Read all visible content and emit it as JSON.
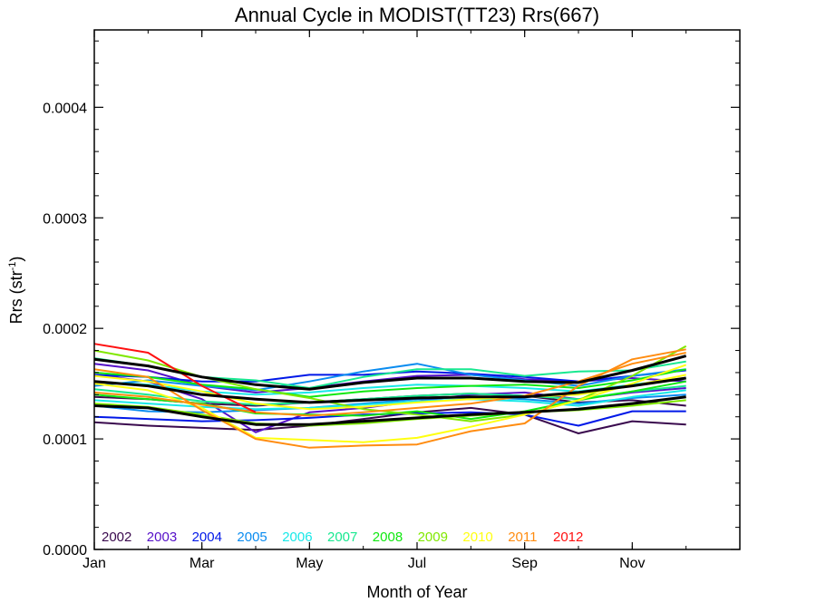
{
  "chart_data": {
    "type": "line",
    "title": "Annual Cycle in MODIST(TT23) Rrs(667)",
    "xlabel": "Month of Year",
    "ylabel_main": "Rrs (str",
    "ylabel_sup": "-1",
    "ylabel_close": ")",
    "xlim": [
      1,
      13
    ],
    "ylim": [
      0,
      0.00047
    ],
    "x_ticks": [
      {
        "value": 1,
        "label": "Jan"
      },
      {
        "value": 3,
        "label": "Mar"
      },
      {
        "value": 5,
        "label": "May"
      },
      {
        "value": 7,
        "label": "Jul"
      },
      {
        "value": 9,
        "label": "Sep"
      },
      {
        "value": 11,
        "label": "Nov"
      }
    ],
    "y_ticks": [
      {
        "value": 0.0,
        "label": "0.0000"
      },
      {
        "value": 0.0001,
        "label": "0.0001"
      },
      {
        "value": 0.0002,
        "label": "0.0002"
      },
      {
        "value": 0.0003,
        "label": "0.0003"
      },
      {
        "value": 0.0004,
        "label": "0.0004"
      }
    ],
    "legend_placement": "bottom-left",
    "x": [
      1,
      2,
      3,
      4,
      5,
      6,
      7,
      8,
      9,
      10,
      11,
      12
    ],
    "series": [
      {
        "name": "2002",
        "color": "#3a0a4e",
        "lines": [
          [
            0.000115,
            0.000112,
            0.00011,
            0.000108,
            0.000112,
            0.000118,
            0.000124,
            0.000128,
            0.000122,
            0.000105,
            0.000116,
            0.000113
          ],
          [
            0.000138,
            0.000136,
            0.000132,
            0.00013,
            0.000133,
            0.000136,
            0.000139,
            0.000141,
            0.000139,
            0.000133,
            0.000135,
            0.00013
          ]
        ]
      },
      {
        "name": "2003",
        "color": "#5510c8",
        "lines": [
          [
            0.000168,
            0.000162,
            0.000148,
            0.000142,
            0.000146,
            0.000152,
            0.000157,
            0.000158,
            0.000154,
            0.000152,
            0.000155,
            0.000152
          ],
          [
            0.000158,
            0.000152,
            0.000136,
            0.000106,
            0.000124,
            0.000128,
            0.000134,
            0.00014,
            0.000142,
            0.000136,
            0.000142,
            0.000146
          ]
        ]
      },
      {
        "name": "2004",
        "color": "#0018e8",
        "lines": [
          [
            0.000158,
            0.000156,
            0.000152,
            0.000152,
            0.000158,
            0.000158,
            0.000161,
            0.000159,
            0.000156,
            0.000152,
            0.000157,
            0.000162
          ],
          [
            0.00012,
            0.000118,
            0.000116,
            0.000117,
            0.000119,
            0.000122,
            0.000123,
            0.000124,
            0.000122,
            0.000112,
            0.000125,
            0.000125
          ]
        ]
      },
      {
        "name": "2005",
        "color": "#0a8cf0",
        "lines": [
          [
            0.000148,
            0.000153,
            0.000148,
            0.000144,
            0.000152,
            0.000161,
            0.000168,
            0.000158,
            0.000153,
            0.000148,
            0.000157,
            0.000163
          ],
          [
            0.00013,
            0.000125,
            0.000124,
            0.000126,
            0.000128,
            0.000132,
            0.000136,
            0.000138,
            0.000136,
            0.000132,
            0.000137,
            0.00014
          ]
        ]
      },
      {
        "name": "2006",
        "color": "#18e8e8",
        "lines": [
          [
            0.000135,
            0.000132,
            0.000129,
            0.000127,
            0.000128,
            0.000131,
            0.000134,
            0.000136,
            0.000134,
            0.00013,
            0.000138,
            0.000144
          ],
          [
            0.000152,
            0.000149,
            0.000143,
            0.00014,
            0.000142,
            0.000146,
            0.000149,
            0.000148,
            0.000146,
            0.000143,
            0.000149,
            0.000155
          ]
        ]
      },
      {
        "name": "2007",
        "color": "#18e890",
        "lines": [
          [
            0.000173,
            0.000166,
            0.000156,
            0.000153,
            0.000146,
            0.000156,
            0.000163,
            0.000163,
            0.000157,
            0.000161,
            0.000162,
            0.00017
          ],
          [
            0.000145,
            0.00014,
            0.000134,
            0.000131,
            0.000133,
            0.000136,
            0.000139,
            0.000141,
            0.000139,
            0.000136,
            0.000143,
            0.000148
          ]
        ]
      },
      {
        "name": "2008",
        "color": "#10e810",
        "lines": [
          [
            0.00016,
            0.000156,
            0.000149,
            0.000145,
            0.000138,
            0.000143,
            0.000146,
            0.000148,
            0.000149,
            0.000146,
            0.000153,
            0.000163
          ],
          [
            0.00014,
            0.000136,
            0.000132,
            0.000123,
            0.000122,
            0.000121,
            0.000125,
            0.000118,
            0.000125,
            0.000135,
            0.000143,
            0.000152
          ]
        ]
      },
      {
        "name": "2009",
        "color": "#80e800",
        "lines": [
          [
            0.00018,
            0.000171,
            0.000156,
            0.000145,
            0.000137,
            0.000127,
            0.000122,
            0.000116,
            0.000122,
            0.000135,
            0.000157,
            0.000184
          ],
          [
            0.000132,
            0.000129,
            0.000122,
            0.000114,
            0.000112,
            0.000114,
            0.000118,
            0.000121,
            0.000124,
            0.000126,
            0.00013,
            0.000135
          ]
        ]
      },
      {
        "name": "2010",
        "color": "#ffff10",
        "lines": [
          [
            0.00015,
            0.000144,
            0.000128,
            0.000101,
            9.9e-05,
            9.7e-05,
            0.000101,
            0.000111,
            0.000122,
            0.000135,
            0.00015,
            0.000167
          ],
          [
            0.000157,
            0.000152,
            0.000143,
            0.000132,
            0.000127,
            0.000129,
            0.000133,
            0.000136,
            0.000138,
            0.00014,
            0.000148,
            0.000158
          ]
        ]
      },
      {
        "name": "2011",
        "color": "#ff8c10",
        "lines": [
          [
            0.000163,
            0.000156,
            0.000126,
            0.0001,
            9.2e-05,
            9.4e-05,
            9.5e-05,
            0.000107,
            0.000114,
            0.000148,
            0.000172,
            0.000181
          ],
          [
            0.000142,
            0.000138,
            0.000131,
            0.000124,
            0.000121,
            0.000124,
            0.000128,
            0.000132,
            0.000139,
            0.000152,
            0.000168,
            0.000178
          ]
        ]
      },
      {
        "name": "2012",
        "color": "#ff1010",
        "lines": [
          [
            0.000186,
            0.000178,
            0.000148,
            0.000124
          ]
        ]
      }
    ],
    "extra_series_color": "#000000",
    "extra_lines": [
      [
        0.000172,
        0.000166,
        0.000156,
        0.000149,
        0.000145,
        0.000151,
        0.000155,
        0.000155,
        0.000152,
        0.000151,
        0.000162,
        0.000175
      ],
      [
        0.000152,
        0.000148,
        0.00014,
        0.000136,
        0.000133,
        0.000135,
        0.000137,
        0.000138,
        0.000138,
        0.000142,
        0.000148,
        0.000155
      ],
      [
        0.00013,
        0.000128,
        0.00012,
        0.000113,
        0.000113,
        0.000116,
        0.000119,
        0.000122,
        0.000124,
        0.000127,
        0.000132,
        0.000138
      ]
    ]
  }
}
